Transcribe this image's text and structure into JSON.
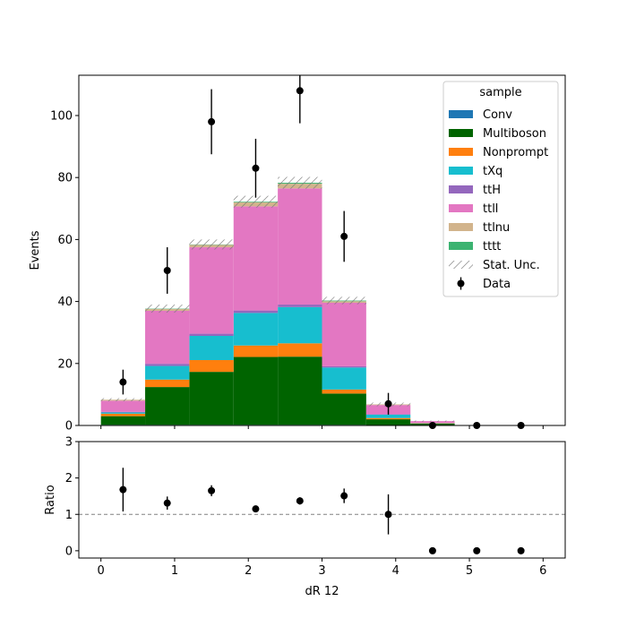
{
  "chart_data": [
    {
      "type": "bar",
      "stacked": true,
      "bin_edges": [
        0,
        0.6,
        1.2,
        1.8,
        2.4,
        3.0,
        3.6,
        4.2,
        4.8,
        5.4,
        6.0
      ],
      "bin_centers": [
        0.3,
        0.9,
        1.5,
        2.1,
        2.7,
        3.3,
        3.9,
        4.5,
        5.1,
        5.7
      ],
      "series": [
        {
          "name": "Conv",
          "color": "#1f77b4",
          "values": [
            0.2,
            0.2,
            0.2,
            0.2,
            0.2,
            0.2,
            0.1,
            0.0,
            0.0,
            0.0
          ]
        },
        {
          "name": "Multiboson",
          "color": "#006400",
          "values": [
            2.8,
            12.2,
            17.1,
            21.9,
            22.0,
            10.1,
            1.9,
            0.6,
            0.0,
            0.0
          ]
        },
        {
          "name": "Nonprompt",
          "color": "#ff7f0e",
          "values": [
            0.8,
            2.4,
            3.8,
            3.7,
            4.3,
            1.3,
            0.4,
            0.1,
            0.0,
            0.0
          ]
        },
        {
          "name": "tXq",
          "color": "#17becf",
          "values": [
            0.4,
            4.4,
            7.8,
            10.5,
            11.7,
            7.1,
            1.1,
            0.1,
            0.0,
            0.0
          ]
        },
        {
          "name": "ttH",
          "color": "#9467bd",
          "values": [
            0.2,
            0.7,
            0.7,
            0.8,
            0.8,
            0.4,
            0.1,
            0.0,
            0.0,
            0.0
          ]
        },
        {
          "name": "ttll",
          "color": "#e377c2",
          "values": [
            3.6,
            17.1,
            27.9,
            33.6,
            37.5,
            20.5,
            3.0,
            0.6,
            0.0,
            0.0
          ]
        },
        {
          "name": "ttlnu",
          "color": "#d2b48c",
          "values": [
            0.3,
            0.6,
            0.8,
            1.3,
            1.5,
            0.5,
            0.2,
            0.0,
            0.0,
            0.0
          ]
        },
        {
          "name": "tttt",
          "color": "#3cb371",
          "values": [
            0.0,
            0.1,
            0.1,
            0.2,
            0.3,
            0.2,
            0.0,
            0.0,
            0.0,
            0.0
          ]
        }
      ],
      "stat_unc": {
        "name": "Stat. Unc.",
        "values": [
          0.5,
          1.3,
          1.6,
          1.9,
          1.9,
          1.2,
          0.6,
          0.2,
          0.0,
          0.0
        ]
      },
      "data": {
        "name": "Data",
        "x": [
          0.3,
          0.9,
          1.5,
          2.1,
          2.7,
          3.3,
          3.9,
          4.5,
          5.1,
          5.7
        ],
        "y": [
          14,
          50,
          98,
          83,
          108,
          61,
          7,
          0,
          0,
          0
        ],
        "err": [
          4,
          7.5,
          10.5,
          9.5,
          10.5,
          8.2,
          3.5,
          0,
          0,
          0
        ]
      },
      "legend_title": "sample",
      "legend_position": "top-right",
      "xlabel": "",
      "ylabel": "Events",
      "xlim": [
        -0.3,
        6.3
      ],
      "ylim": [
        0,
        113
      ],
      "yticks": [
        0,
        20,
        40,
        60,
        80,
        100
      ],
      "ytick_labels": [
        "0",
        "20",
        "40",
        "60",
        "80",
        "100"
      ]
    },
    {
      "type": "scatter",
      "x": [
        0.3,
        0.9,
        1.5,
        2.1,
        2.7,
        3.3,
        3.9,
        4.5,
        5.1,
        5.7
      ],
      "y": [
        1.68,
        1.31,
        1.65,
        1.15,
        1.37,
        1.51,
        1.0,
        0.0,
        0.0,
        0.0
      ],
      "err": [
        0.6,
        0.18,
        0.15,
        0.07,
        0.1,
        0.2,
        0.55,
        0,
        0,
        0
      ],
      "reference_line": 1,
      "xlabel": "dR 12",
      "ylabel": "Ratio",
      "xlim": [
        -0.3,
        6.3
      ],
      "ylim": [
        -0.2,
        3
      ],
      "xticks": [
        0,
        1,
        2,
        3,
        4,
        5,
        6
      ],
      "xtick_labels": [
        "0",
        "1",
        "2",
        "3",
        "4",
        "5",
        "6"
      ],
      "yticks": [
        0,
        1,
        2,
        3
      ],
      "ytick_labels": [
        "0",
        "1",
        "2",
        "3"
      ]
    }
  ]
}
